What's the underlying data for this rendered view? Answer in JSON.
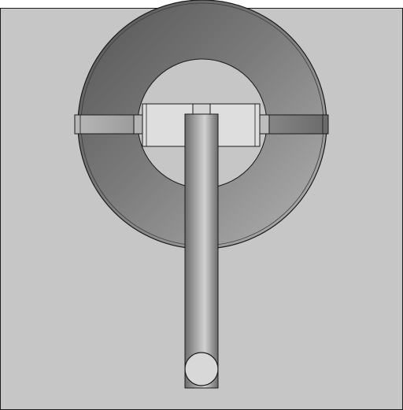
{
  "drawing": {
    "background_color": "#ffffff",
    "panel_color": "#c6c6c6",
    "outline_color": "#1a1a1a",
    "components": [
      "base-plate",
      "outer-ring",
      "ring-bore",
      "crossbar",
      "hub-block",
      "shaft",
      "shaft-end-bore"
    ]
  }
}
